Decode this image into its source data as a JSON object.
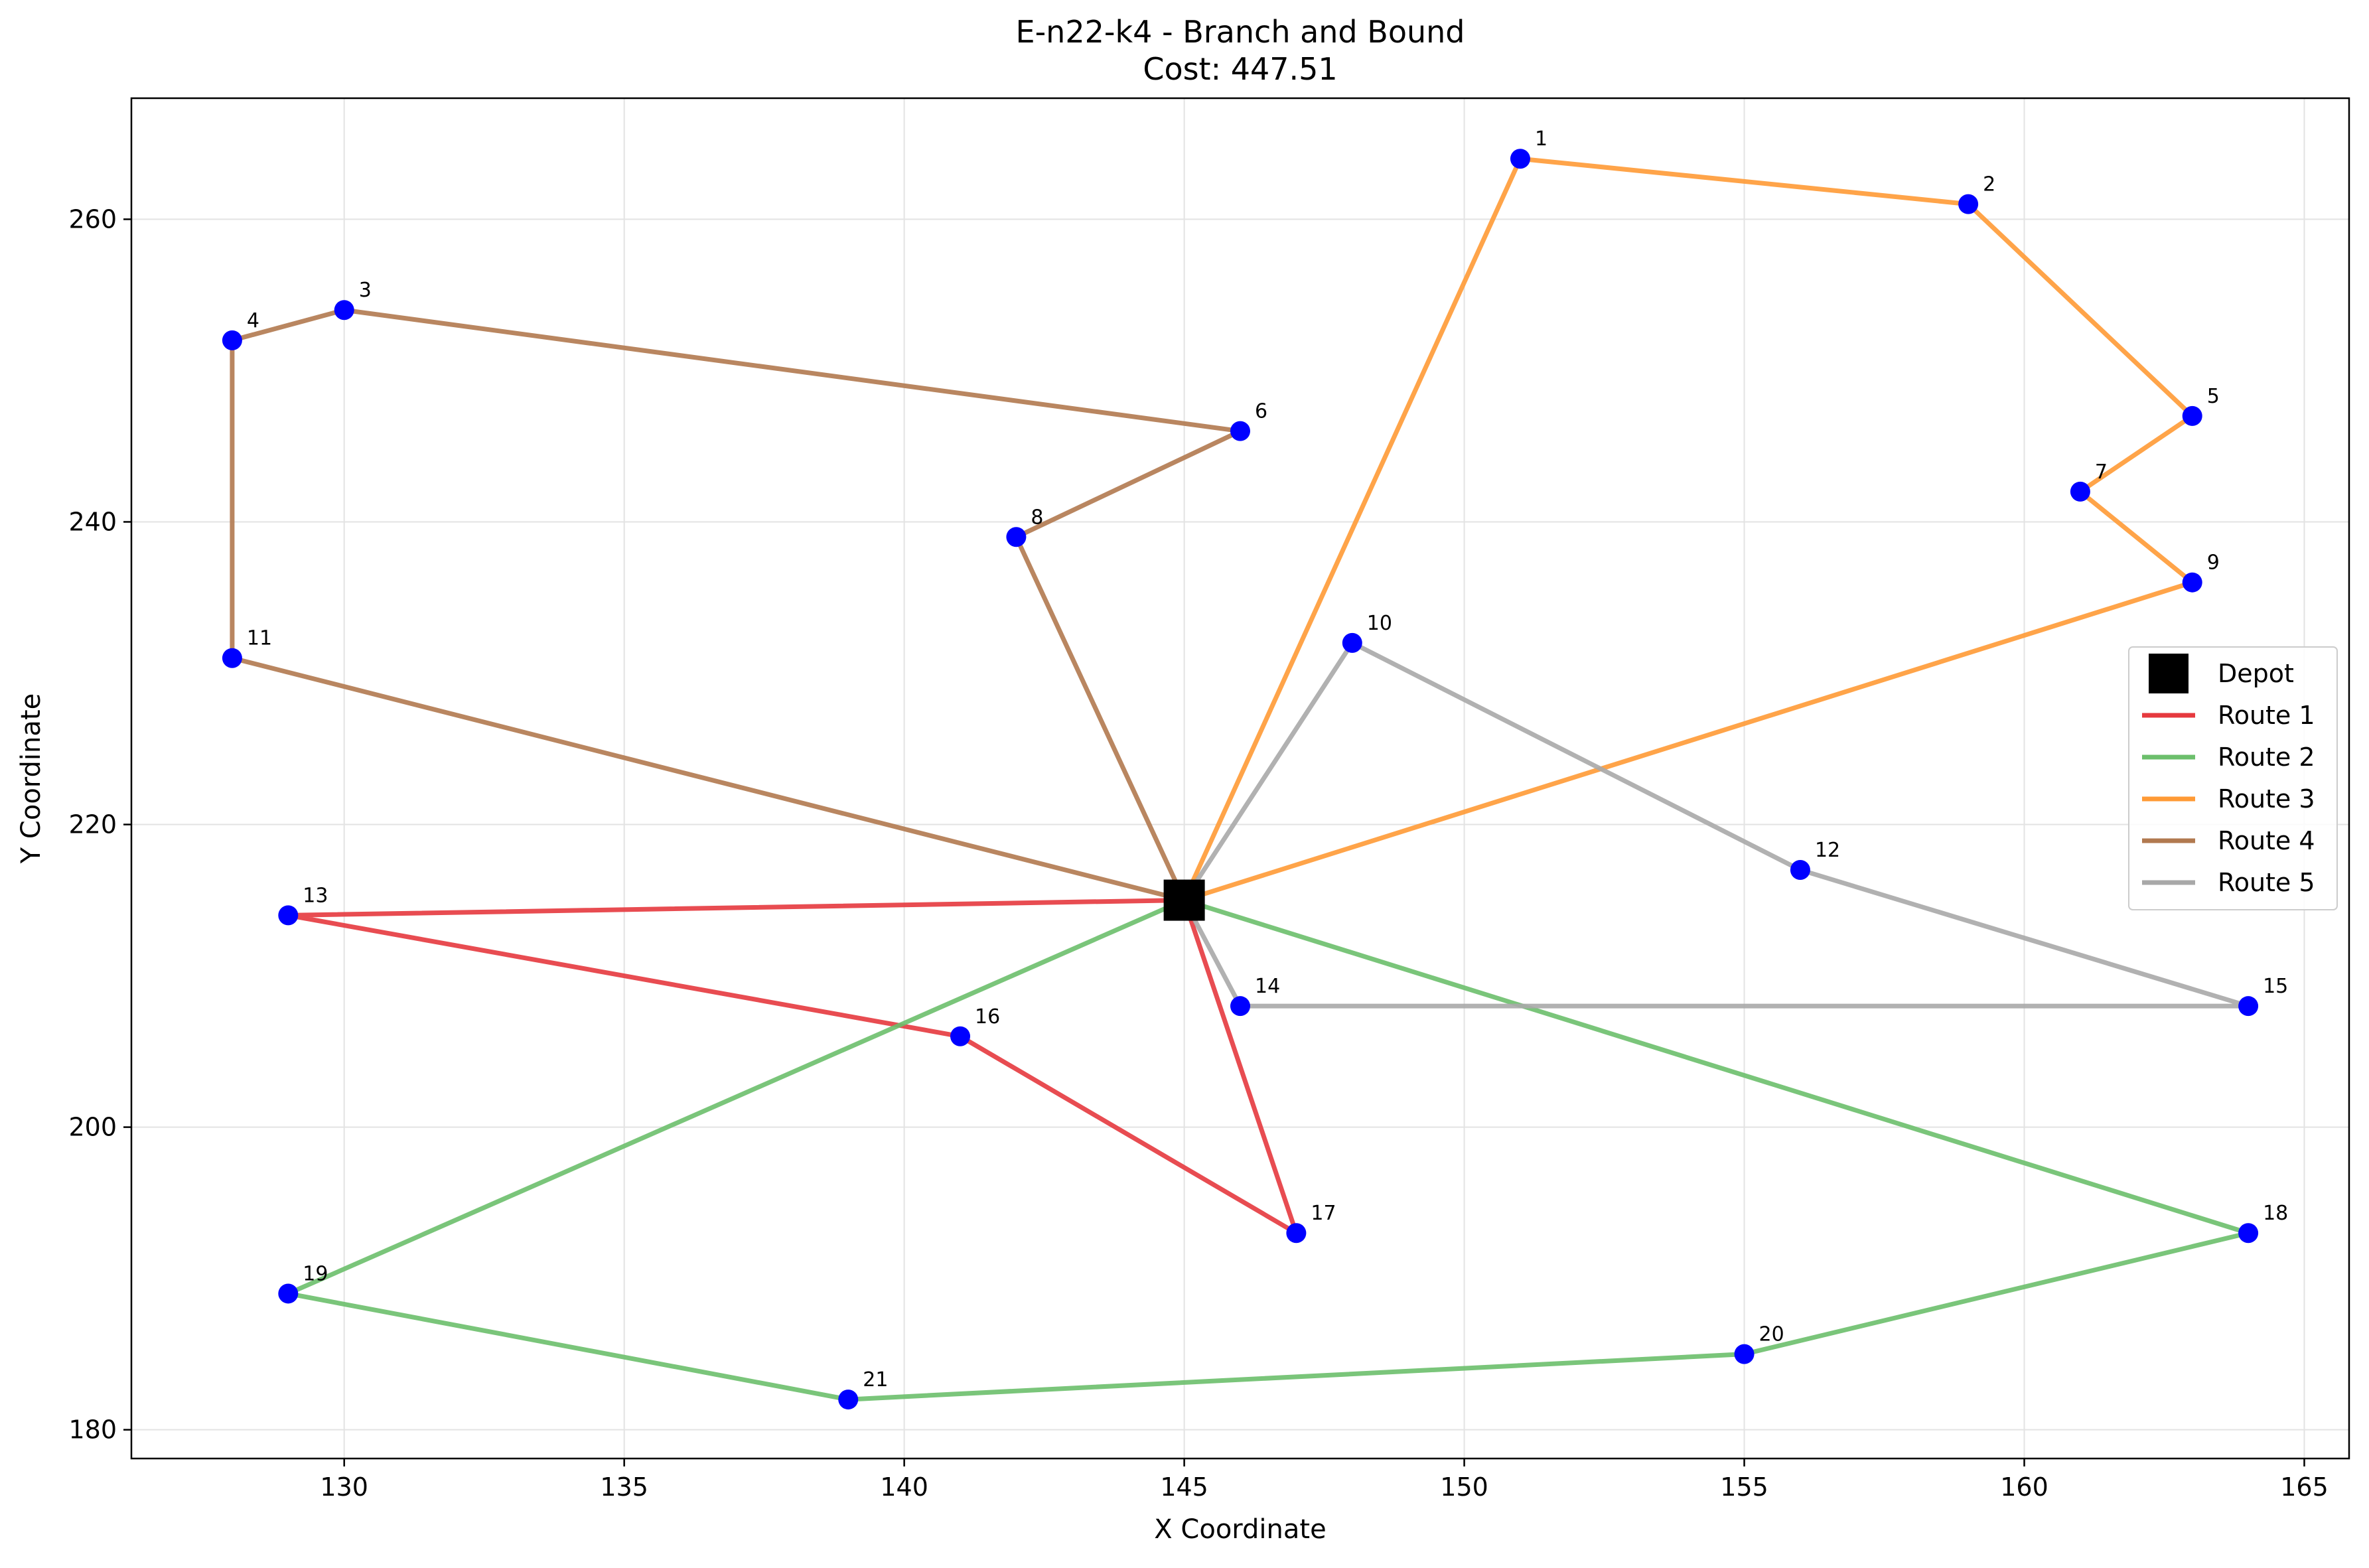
{
  "chart_data": {
    "type": "scatter",
    "title_line1": "E-n22-k4 - Branch and Bound",
    "title_line2": "Cost: 447.51",
    "xlabel": "X Coordinate",
    "ylabel": "Y Coordinate",
    "xlim": [
      126.2,
      165.8
    ],
    "ylim": [
      178.1,
      268.0
    ],
    "xticks": [
      130,
      135,
      140,
      145,
      150,
      155,
      160,
      165
    ],
    "yticks": [
      180,
      200,
      220,
      240,
      260
    ],
    "grid": true,
    "legend_position": "center-right",
    "depot": {
      "label": "Depot",
      "x": 145,
      "y": 215,
      "color": "#000000"
    },
    "customers": [
      {
        "id": 1,
        "label": "1",
        "x": 151,
        "y": 264
      },
      {
        "id": 2,
        "label": "2",
        "x": 159,
        "y": 261
      },
      {
        "id": 3,
        "label": "3",
        "x": 130,
        "y": 254
      },
      {
        "id": 4,
        "label": "4",
        "x": 128,
        "y": 252
      },
      {
        "id": 5,
        "label": "5",
        "x": 163,
        "y": 247
      },
      {
        "id": 6,
        "label": "6",
        "x": 146,
        "y": 246
      },
      {
        "id": 7,
        "label": "7",
        "x": 161,
        "y": 242
      },
      {
        "id": 8,
        "label": "8",
        "x": 142,
        "y": 239
      },
      {
        "id": 9,
        "label": "9",
        "x": 163,
        "y": 236
      },
      {
        "id": 10,
        "label": "10",
        "x": 148,
        "y": 232
      },
      {
        "id": 11,
        "label": "11",
        "x": 128,
        "y": 231
      },
      {
        "id": 12,
        "label": "12",
        "x": 156,
        "y": 217
      },
      {
        "id": 13,
        "label": "13",
        "x": 129,
        "y": 214
      },
      {
        "id": 14,
        "label": "14",
        "x": 146,
        "y": 208
      },
      {
        "id": 15,
        "label": "15",
        "x": 164,
        "y": 208
      },
      {
        "id": 16,
        "label": "16",
        "x": 141,
        "y": 206
      },
      {
        "id": 17,
        "label": "17",
        "x": 147,
        "y": 193
      },
      {
        "id": 18,
        "label": "18",
        "x": 164,
        "y": 193
      },
      {
        "id": 19,
        "label": "19",
        "x": 129,
        "y": 189
      },
      {
        "id": 20,
        "label": "20",
        "x": 155,
        "y": 185
      },
      {
        "id": 21,
        "label": "21",
        "x": 139,
        "y": 182
      }
    ],
    "point_color": "#0000ff",
    "series": [
      {
        "name": "Route 1",
        "color": "#e6393e",
        "stops": [
          0,
          13,
          16,
          17,
          0
        ]
      },
      {
        "name": "Route 2",
        "color": "#6cbf6c",
        "stops": [
          0,
          18,
          20,
          21,
          19,
          0
        ]
      },
      {
        "name": "Route 3",
        "color": "#ff9a35",
        "stops": [
          0,
          1,
          2,
          5,
          7,
          9,
          0
        ]
      },
      {
        "name": "Route 4",
        "color": "#b1794f",
        "stops": [
          0,
          8,
          6,
          3,
          4,
          11,
          0
        ]
      },
      {
        "name": "Route 5",
        "color": "#a8a8a8",
        "stops": [
          0,
          14,
          15,
          12,
          10,
          0
        ]
      }
    ]
  }
}
